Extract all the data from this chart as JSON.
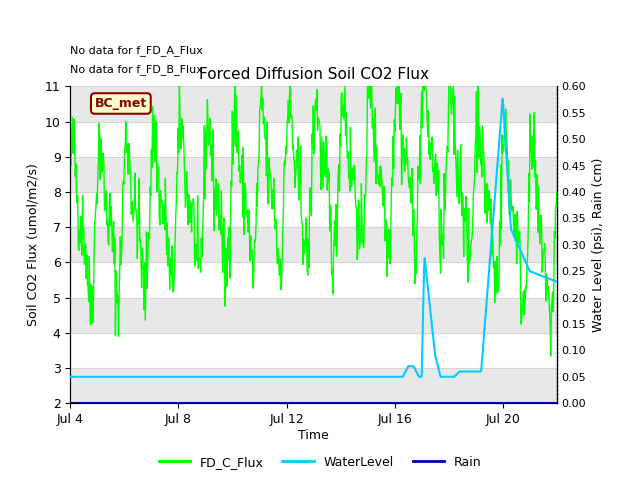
{
  "title": "Forced Diffusion Soil CO2 Flux",
  "xlabel": "Time",
  "ylabel_left": "Soil CO2 Flux (umol/m2/s)",
  "ylabel_right": "Water Level (psi), Rain (cm)",
  "ylim_left": [
    2.0,
    11.0
  ],
  "ylim_right": [
    0.0,
    0.6
  ],
  "yticks_left": [
    2.0,
    3.0,
    4.0,
    5.0,
    6.0,
    7.0,
    8.0,
    9.0,
    10.0,
    11.0
  ],
  "yticks_right": [
    0.0,
    0.05,
    0.1,
    0.15,
    0.2,
    0.25,
    0.3,
    0.35,
    0.4,
    0.45,
    0.5,
    0.55,
    0.6
  ],
  "no_data_text1": "No data for f_FD_A_Flux",
  "no_data_text2": "No data for f_FD_B_Flux",
  "bc_met_label": "BC_met",
  "colors": {
    "FD_C_Flux": "#00FF00",
    "WaterLevel": "#00CCFF",
    "Rain": "#0000AA",
    "background": "#ffffff",
    "band_light": "#e8e8e8"
  },
  "legend_labels": [
    "FD_C_Flux",
    "WaterLevel",
    "Rain"
  ],
  "xtick_labels": [
    "Jul 4",
    "Jul 8",
    "Jul 12",
    "Jul 16",
    "Jul 20"
  ],
  "xtick_positions": [
    0,
    4,
    8,
    12,
    16
  ],
  "xlim": [
    0,
    18
  ]
}
